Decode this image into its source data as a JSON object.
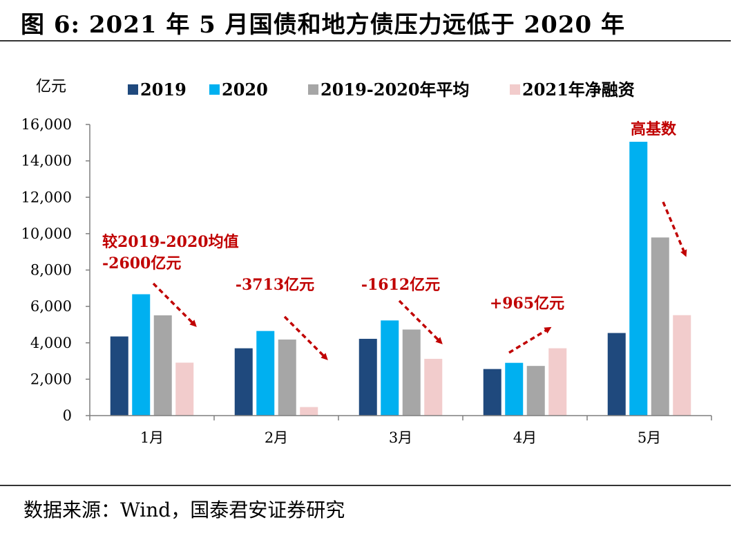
{
  "figure_title": "图 6: 2021 年 5 月国债和地方债压力远低于 2020 年",
  "source": "数据来源：Wind，国泰君安证券研究",
  "colors": {
    "s2019": "#1f497d",
    "s2020": "#00b0f0",
    "avg": "#a6a6a6",
    "net2021": "#f2cccc",
    "annotation": "#c00000",
    "axis": "#7f7f7f"
  },
  "chart_data": {
    "type": "bar",
    "unit_label": "亿元",
    "categories": [
      "1月",
      "2月",
      "3月",
      "4月",
      "5月"
    ],
    "series": [
      {
        "name": "2019",
        "color_key": "s2019",
        "values": [
          4350,
          3700,
          4220,
          2560,
          4540
        ]
      },
      {
        "name": "2020",
        "color_key": "s2020",
        "values": [
          6670,
          4650,
          5230,
          2900,
          15050
        ]
      },
      {
        "name": "2019-2020年平均",
        "color_key": "avg",
        "values": [
          5510,
          4180,
          4730,
          2730,
          9790
        ]
      },
      {
        "name": "2021年净融资",
        "color_key": "net2021",
        "values": [
          2910,
          470,
          3120,
          3700,
          5520
        ]
      }
    ],
    "ylim": [
      0,
      16000
    ],
    "yticks": [
      0,
      2000,
      4000,
      6000,
      8000,
      10000,
      12000,
      14000,
      16000
    ],
    "ytick_labels": [
      "0",
      "2,000",
      "4,000",
      "6,000",
      "8,000",
      "10,000",
      "12,000",
      "14,000",
      "16,000"
    ],
    "legend_position": "top",
    "grid": false,
    "annotations": [
      {
        "category": "1月",
        "lines": [
          "较2019-2020均值",
          "-2600亿元"
        ],
        "arrow": "down"
      },
      {
        "category": "2月",
        "lines": [
          "-3713亿元"
        ],
        "arrow": "down"
      },
      {
        "category": "3月",
        "lines": [
          "-1612亿元"
        ],
        "arrow": "down"
      },
      {
        "category": "4月",
        "lines": [
          "+965亿元"
        ],
        "arrow": "up"
      },
      {
        "category": "5月",
        "lines": [
          "高基数"
        ],
        "arrow": "down"
      }
    ]
  }
}
